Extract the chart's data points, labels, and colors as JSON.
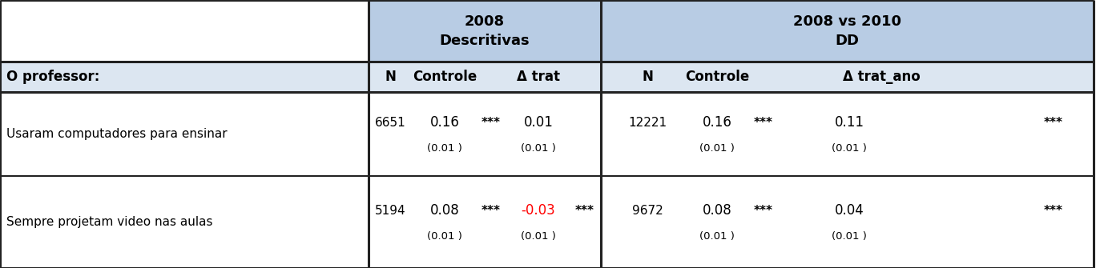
{
  "header_bg": "#b8cce4",
  "col_header_bg": "#dce6f1",
  "white_bg": "#ffffff",
  "text_color": "#000000",
  "red_color": "#ff0000",
  "rows": [
    {
      "label": "Usaram computadores para ensinar",
      "n1": "6651",
      "ctrl1": "0.16",
      "ctrl1_se": "(0.01 )",
      "ctrl1_sig": "***",
      "trat1": "0.01",
      "trat1_se": "(0.01 )",
      "trat1_sig": "",
      "n2": "12221",
      "ctrl2": "0.16",
      "ctrl2_se": "(0.01 )",
      "ctrl2_sig": "***",
      "trat2": "0.11",
      "trat2_se": "(0.01 )",
      "trat2_sig": "***",
      "trat1_red": false
    },
    {
      "label": "Sempre projetam video nas aulas",
      "n1": "5194",
      "ctrl1": "0.08",
      "ctrl1_se": "(0.01 )",
      "ctrl1_sig": "***",
      "trat1": "-0.03",
      "trat1_se": "(0.01 )",
      "trat1_sig": "***",
      "n2": "9672",
      "ctrl2": "0.08",
      "ctrl2_se": "(0.01 )",
      "ctrl2_sig": "***",
      "trat2": "0.04",
      "trat2_se": "(0.01 )",
      "trat2_sig": "***",
      "trat1_red": true
    }
  ]
}
